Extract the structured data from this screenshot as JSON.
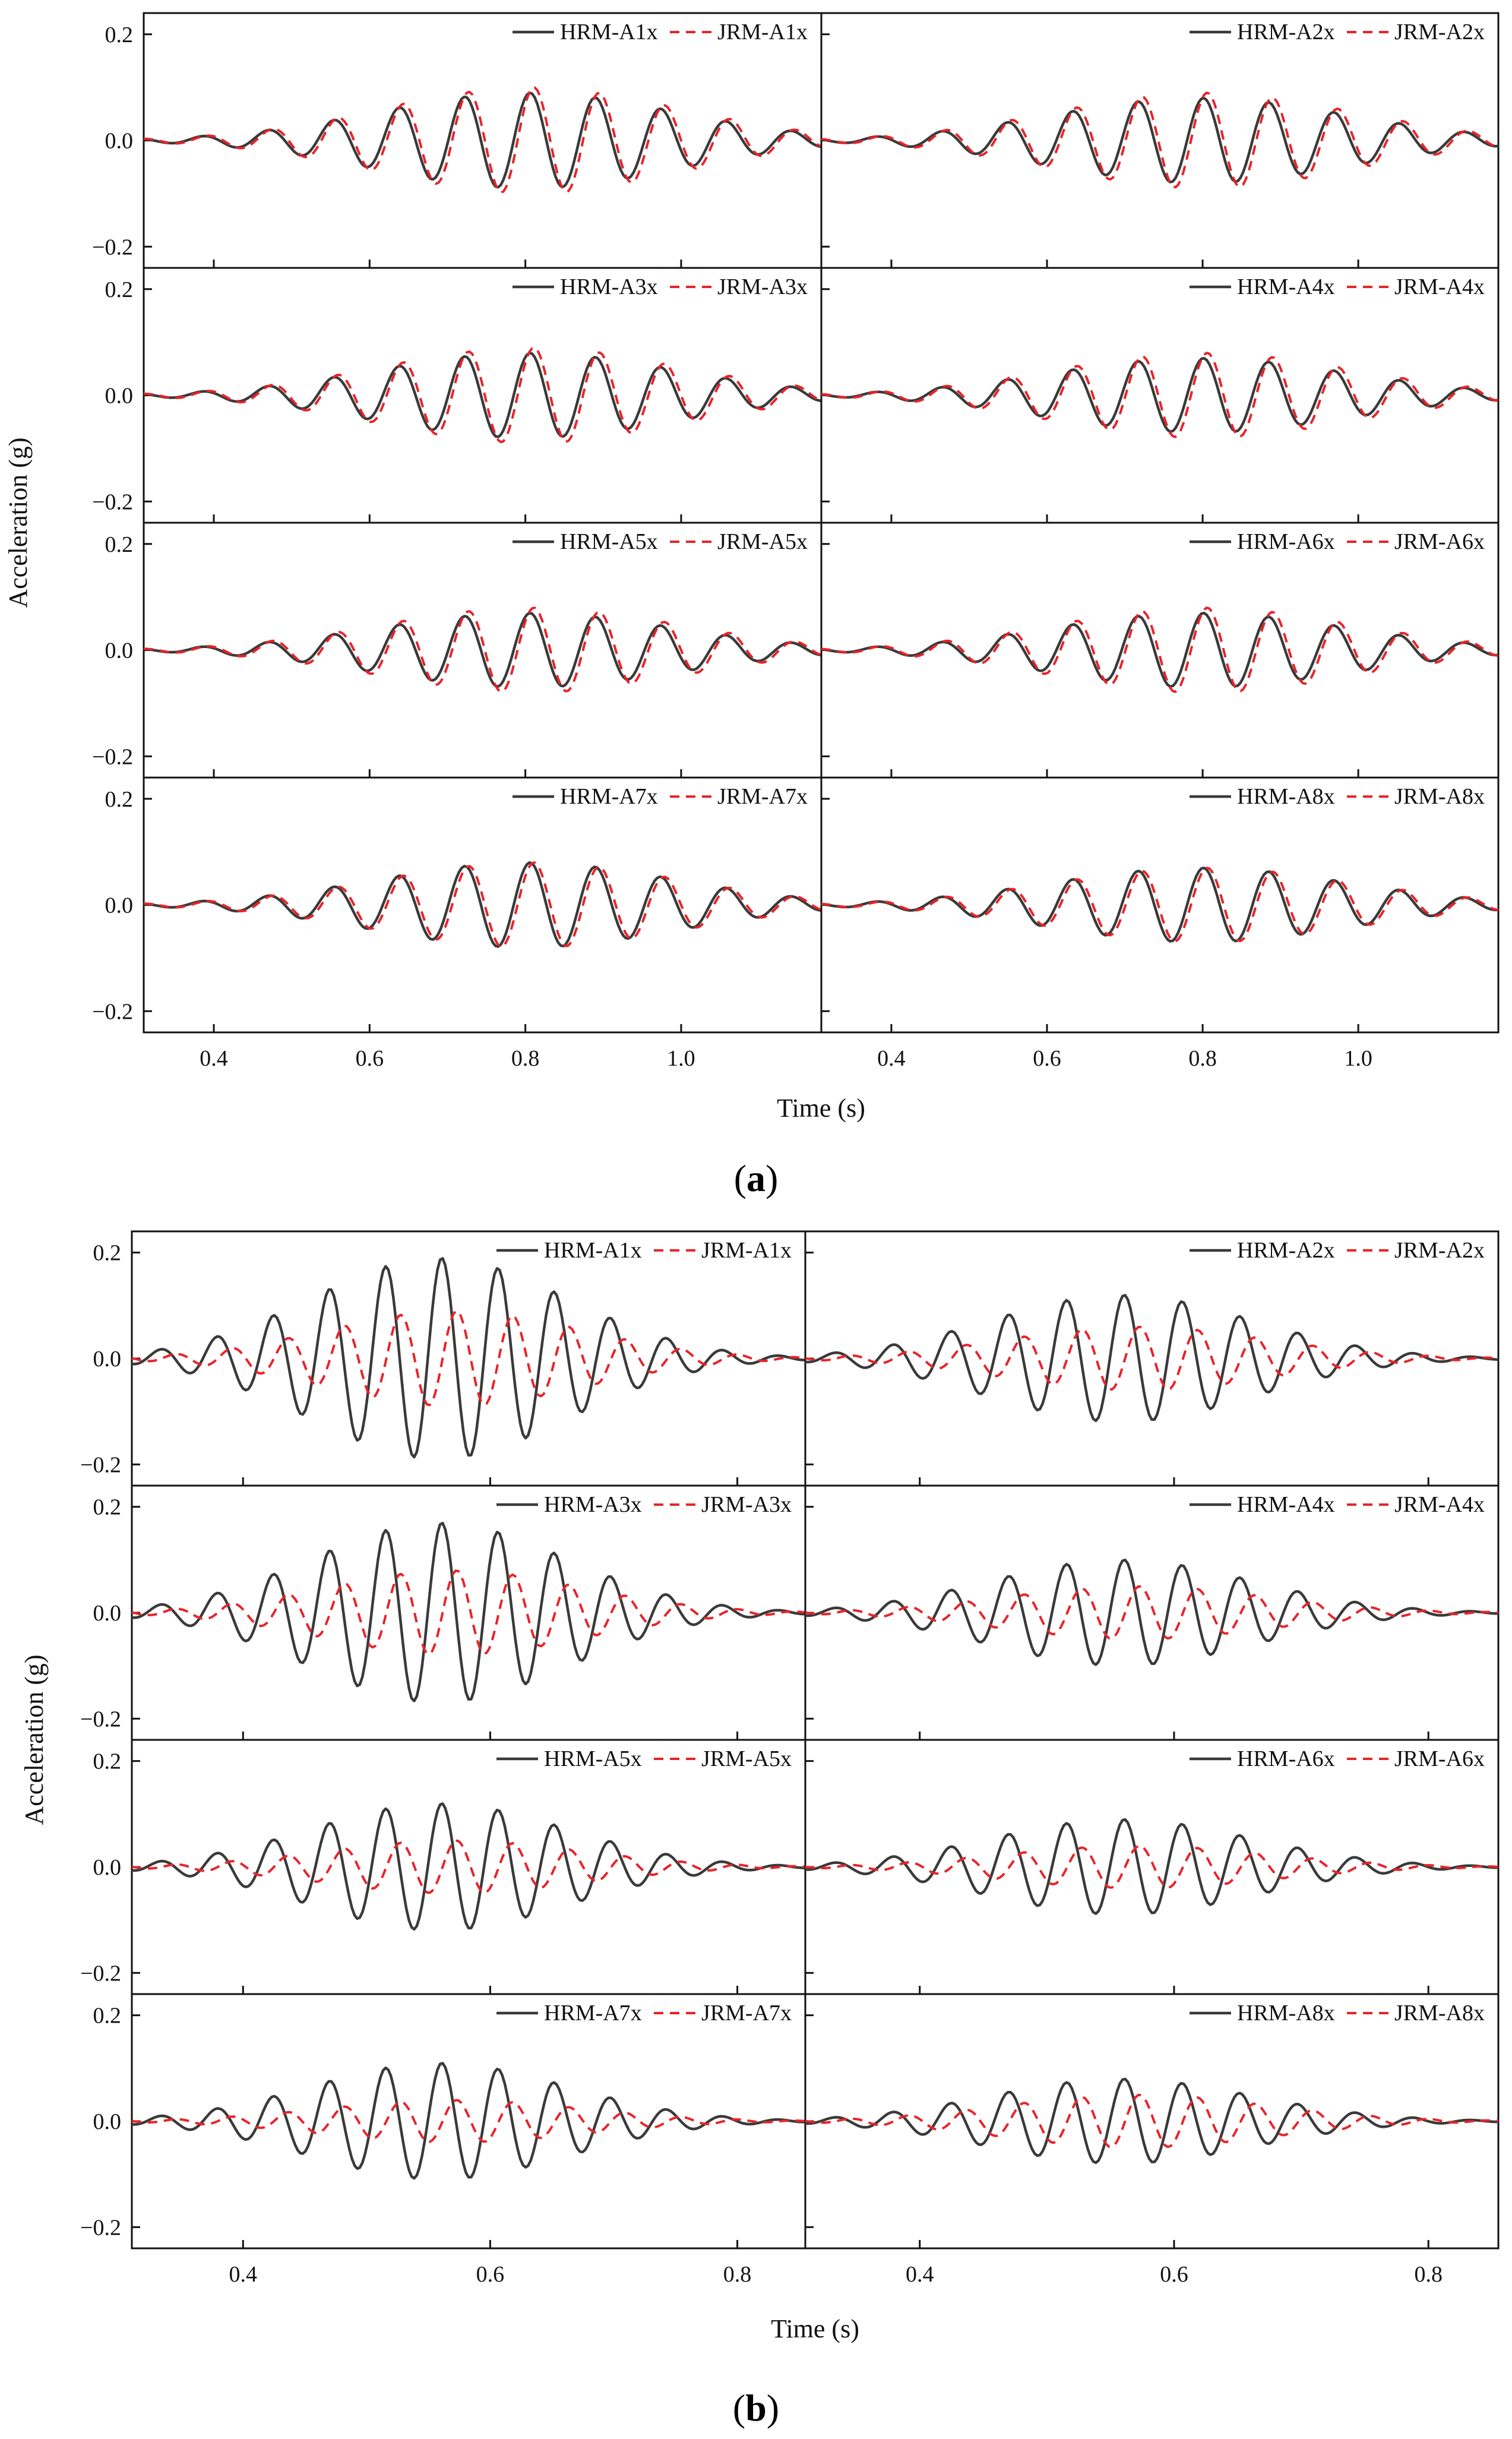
{
  "figure": {
    "captions": [
      "a",
      "b"
    ]
  },
  "chart_data": [
    {
      "id": "a",
      "type": "line",
      "caption": "a",
      "xlabel": "Time (s)",
      "ylabel": "Acceleration (g)",
      "xlim": [
        0.31,
        1.18
      ],
      "ylim": [
        -0.24,
        0.24
      ],
      "xticks": [
        0.4,
        0.6,
        0.8,
        1.0
      ],
      "xtick_labels": [
        "0.4",
        "0.6",
        "0.8",
        "1.0"
      ],
      "yticks": [
        -0.2,
        0.0,
        0.2
      ],
      "ytick_labels": [
        "−0.2",
        "0.0",
        "0.2"
      ],
      "layout": "4 rows x 2 columns",
      "legend_position": "top-right",
      "panels": [
        {
          "series": [
            {
              "name": "HRM-A1x",
              "style": "solid",
              "amplitude_peak": 0.09,
              "period_s": 0.084,
              "t0": 0.365
            },
            {
              "name": "JRM-A1x",
              "style": "dashed",
              "amplitude_peak": 0.1,
              "period_s": 0.084,
              "t0": 0.37
            }
          ]
        },
        {
          "series": [
            {
              "name": "HRM-A2x",
              "style": "solid",
              "amplitude_peak": 0.08,
              "period_s": 0.084,
              "t0": 0.36
            },
            {
              "name": "JRM-A2x",
              "style": "dashed",
              "amplitude_peak": 0.09,
              "period_s": 0.084,
              "t0": 0.365
            }
          ]
        },
        {
          "series": [
            {
              "name": "HRM-A3x",
              "style": "solid",
              "amplitude_peak": 0.08,
              "period_s": 0.084,
              "t0": 0.365
            },
            {
              "name": "JRM-A3x",
              "style": "dashed",
              "amplitude_peak": 0.09,
              "period_s": 0.084,
              "t0": 0.37
            }
          ]
        },
        {
          "series": [
            {
              "name": "HRM-A4x",
              "style": "solid",
              "amplitude_peak": 0.07,
              "period_s": 0.084,
              "t0": 0.36
            },
            {
              "name": "JRM-A4x",
              "style": "dashed",
              "amplitude_peak": 0.08,
              "period_s": 0.084,
              "t0": 0.365
            }
          ]
        },
        {
          "series": [
            {
              "name": "HRM-A5x",
              "style": "solid",
              "amplitude_peak": 0.07,
              "period_s": 0.084,
              "t0": 0.365
            },
            {
              "name": "JRM-A5x",
              "style": "dashed",
              "amplitude_peak": 0.08,
              "period_s": 0.084,
              "t0": 0.37
            }
          ]
        },
        {
          "series": [
            {
              "name": "HRM-A6x",
              "style": "solid",
              "amplitude_peak": 0.07,
              "period_s": 0.084,
              "t0": 0.36
            },
            {
              "name": "JRM-A6x",
              "style": "dashed",
              "amplitude_peak": 0.08,
              "period_s": 0.084,
              "t0": 0.365
            }
          ]
        },
        {
          "series": [
            {
              "name": "HRM-A7x",
              "style": "solid",
              "amplitude_peak": 0.08,
              "period_s": 0.084,
              "t0": 0.365
            },
            {
              "name": "JRM-A7x",
              "style": "dashed",
              "amplitude_peak": 0.08,
              "period_s": 0.084,
              "t0": 0.37
            }
          ]
        },
        {
          "series": [
            {
              "name": "HRM-A8x",
              "style": "solid",
              "amplitude_peak": 0.07,
              "period_s": 0.084,
              "t0": 0.36
            },
            {
              "name": "JRM-A8x",
              "style": "dashed",
              "amplitude_peak": 0.07,
              "period_s": 0.084,
              "t0": 0.365
            }
          ]
        }
      ]
    },
    {
      "id": "b",
      "type": "line",
      "caption": "b",
      "xlabel": "Time (s)",
      "ylabel": "Acceleration (g)",
      "xlim": [
        0.31,
        0.855
      ],
      "ylim": [
        -0.24,
        0.24
      ],
      "xticks": [
        0.4,
        0.6,
        0.8
      ],
      "xtick_labels": [
        "0.4",
        "0.6",
        "0.8"
      ],
      "yticks": [
        -0.2,
        0.0,
        0.2
      ],
      "ytick_labels": [
        "−0.2",
        "0.0",
        "0.2"
      ],
      "layout": "4 rows x 2 columns",
      "legend_position": "top-right",
      "panels": [
        {
          "series": [
            {
              "name": "HRM-A1x",
              "style": "solid",
              "amplitude_peak": 0.19,
              "period_s": 0.0455,
              "t0": 0.322
            },
            {
              "name": "JRM-A1x",
              "style": "dashed",
              "amplitude_peak": 0.09,
              "period_s": 0.0455,
              "t0": 0.334
            }
          ]
        },
        {
          "series": [
            {
              "name": "HRM-A2x",
              "style": "solid",
              "amplitude_peak": 0.12,
              "period_s": 0.0455,
              "t0": 0.322
            },
            {
              "name": "JRM-A2x",
              "style": "dashed",
              "amplitude_peak": 0.06,
              "period_s": 0.0455,
              "t0": 0.334
            }
          ]
        },
        {
          "series": [
            {
              "name": "HRM-A3x",
              "style": "solid",
              "amplitude_peak": 0.17,
              "period_s": 0.0455,
              "t0": 0.322
            },
            {
              "name": "JRM-A3x",
              "style": "dashed",
              "amplitude_peak": 0.08,
              "period_s": 0.0455,
              "t0": 0.334
            }
          ]
        },
        {
          "series": [
            {
              "name": "HRM-A4x",
              "style": "solid",
              "amplitude_peak": 0.1,
              "period_s": 0.0455,
              "t0": 0.322
            },
            {
              "name": "JRM-A4x",
              "style": "dashed",
              "amplitude_peak": 0.05,
              "period_s": 0.0455,
              "t0": 0.334
            }
          ]
        },
        {
          "series": [
            {
              "name": "HRM-A5x",
              "style": "solid",
              "amplitude_peak": 0.12,
              "period_s": 0.0455,
              "t0": 0.322
            },
            {
              "name": "JRM-A5x",
              "style": "dashed",
              "amplitude_peak": 0.05,
              "period_s": 0.0455,
              "t0": 0.334
            }
          ]
        },
        {
          "series": [
            {
              "name": "HRM-A6x",
              "style": "solid",
              "amplitude_peak": 0.09,
              "period_s": 0.0455,
              "t0": 0.322
            },
            {
              "name": "JRM-A6x",
              "style": "dashed",
              "amplitude_peak": 0.04,
              "period_s": 0.0455,
              "t0": 0.334
            }
          ]
        },
        {
          "series": [
            {
              "name": "HRM-A7x",
              "style": "solid",
              "amplitude_peak": 0.11,
              "period_s": 0.0455,
              "t0": 0.322
            },
            {
              "name": "JRM-A7x",
              "style": "dashed",
              "amplitude_peak": 0.04,
              "period_s": 0.0455,
              "t0": 0.334
            }
          ]
        },
        {
          "series": [
            {
              "name": "HRM-A8x",
              "style": "solid",
              "amplitude_peak": 0.08,
              "period_s": 0.0455,
              "t0": 0.322
            },
            {
              "name": "JRM-A8x",
              "style": "dashed",
              "amplitude_peak": 0.05,
              "period_s": 0.0455,
              "t0": 0.334
            }
          ]
        }
      ]
    }
  ]
}
